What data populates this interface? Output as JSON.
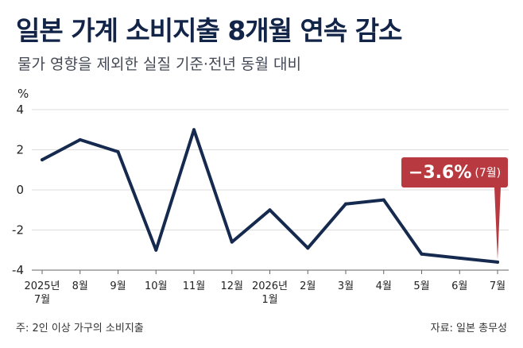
{
  "title": "일본 가계 소비지출 8개월 연속 감소",
  "subtitle": "물가 영향을 제외한 실질 기준·전년 동월 대비",
  "footnote": "주: 2인 이상 가구의 소비지출",
  "source": "자료: 일본 총무성",
  "callout": {
    "value_text": "−3.6%",
    "period_text": "(7월)"
  },
  "colors": {
    "line": "#152a4e",
    "accent": "#b83a40",
    "grid": "#dddddd"
  },
  "chart_data": {
    "type": "line",
    "unit_label": "%",
    "ylim": [
      -4,
      4
    ],
    "yticks": [
      4,
      2,
      0,
      -2,
      -4
    ],
    "ytick_labels": [
      "4",
      "2",
      "0",
      "-2",
      "-4"
    ],
    "grid": true,
    "categories": [
      [
        "2025년",
        "7월"
      ],
      [
        "8월"
      ],
      [
        "9월"
      ],
      [
        "10월"
      ],
      [
        "11월"
      ],
      [
        "12월"
      ],
      [
        "2026년",
        "1월"
      ],
      [
        "2월"
      ],
      [
        "3월"
      ],
      [
        "4월"
      ],
      [
        "5월"
      ],
      [
        "6월"
      ],
      [
        "7월"
      ]
    ],
    "values": [
      1.5,
      2.5,
      1.9,
      -3.0,
      3.0,
      -2.6,
      -1.0,
      -2.9,
      -0.7,
      -0.5,
      -3.2,
      -3.4,
      -3.6
    ],
    "highlight_index": 12
  }
}
